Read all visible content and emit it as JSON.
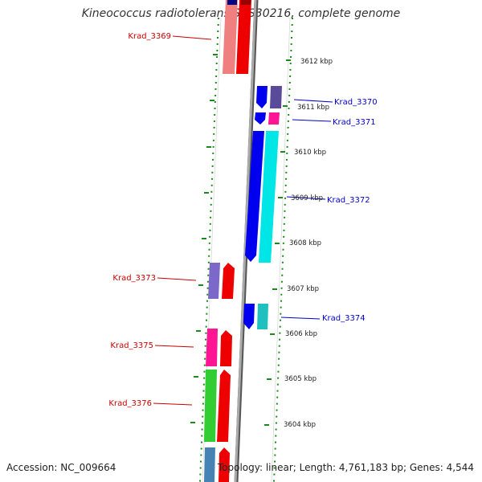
{
  "title": "Kineococcus radiotolerans SRS30216, complete genome",
  "accession": "Accession: NC_009664",
  "topology": "Topology: linear; Length: 4,761,183 bp; Genes: 4,544",
  "colors": {
    "reverse_label": "#cc0000",
    "forward_label": "#0000cc",
    "axis": "#888888",
    "frame_dots": "#1a8a1a"
  },
  "ticks": [
    "3612 kbp",
    "3611 kbp",
    "3610 kbp",
    "3609 kbp",
    "3608 kbp",
    "3607 kbp",
    "3606 kbp",
    "3605 kbp",
    "3604 kbp"
  ],
  "genes": [
    {
      "name": "Krad_3369",
      "strand": "reverse",
      "type_color": "#f08080",
      "cds_color": "#ee0000"
    },
    {
      "name": "Krad_3370",
      "strand": "forward",
      "type_color": "#5a4a9a",
      "cds_color": "#0000ee"
    },
    {
      "name": "Krad_3371",
      "strand": "forward",
      "type_color": "#ff1493",
      "cds_color": "#0000ee"
    },
    {
      "name": "Krad_3372",
      "strand": "forward",
      "type_color": "#00e5e5",
      "cds_color": "#0000ee"
    },
    {
      "name": "Krad_3373",
      "strand": "reverse",
      "type_color": "#7b68c8",
      "cds_color": "#ee0000"
    },
    {
      "name": "Krad_3374",
      "strand": "forward",
      "type_color": "#20c0c0",
      "cds_color": "#0000ee"
    },
    {
      "name": "Krad_3375",
      "strand": "reverse",
      "type_color": "#ff1493",
      "cds_color": "#ee0000"
    },
    {
      "name": "Krad_3376",
      "strand": "reverse",
      "type_color": "#32cd32",
      "cds_color": "#ee0000"
    }
  ]
}
